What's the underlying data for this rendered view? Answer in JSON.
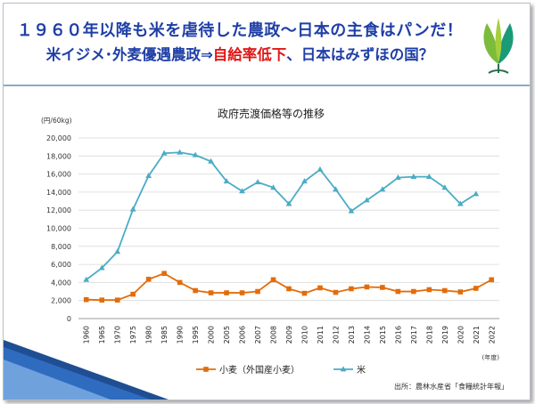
{
  "title": {
    "line1": "１９６０年以降も米を虐待した農政～日本の主食はパンだ！",
    "line2_a": "米イジメ･外麦優遇農政⇒",
    "line2_red": "自給率低下",
    "line2_b": "、日本はみずほの国？"
  },
  "colors": {
    "title": "#1f3fa6",
    "red": "#e01818",
    "wheat": "#e36c0a",
    "rice": "#4bacc6"
  },
  "chart_data": {
    "type": "line",
    "title": "政府売渡価格等の推移",
    "ylabel": "(円/60kg)",
    "xlabel": "(年度)",
    "ylim": [
      0,
      20000
    ],
    "yticks": [
      0,
      2000,
      4000,
      6000,
      8000,
      10000,
      12000,
      14000,
      16000,
      18000,
      20000
    ],
    "ytick_labels": [
      "0",
      "2,000",
      "4,000",
      "6,000",
      "8,000",
      "10,000",
      "12,000",
      "14,000",
      "16,000",
      "18,000",
      "20,000"
    ],
    "categories": [
      "1960",
      "1965",
      "1970",
      "1975",
      "1980",
      "1985",
      "1990",
      "1995",
      "2000",
      "2005",
      "2006",
      "2007",
      "2008",
      "2009",
      "2010",
      "2011",
      "2012",
      "2013",
      "2014",
      "2015",
      "2016",
      "2017",
      "2018",
      "2019",
      "2020",
      "2021",
      "2022"
    ],
    "series": [
      {
        "name": "小麦（外国産小麦）",
        "values": [
          2100,
          2050,
          2050,
          2700,
          4350,
          5000,
          4000,
          3100,
          2850,
          2850,
          2850,
          3000,
          4300,
          3300,
          2800,
          3400,
          2900,
          3300,
          3500,
          3450,
          3000,
          3000,
          3200,
          3100,
          2950,
          3350,
          4300
        ]
      },
      {
        "name": "米",
        "values": [
          4300,
          5600,
          7400,
          12100,
          15800,
          18300,
          18400,
          18100,
          17400,
          15200,
          14100,
          15100,
          14500,
          12700,
          15200,
          16500,
          14300,
          11900,
          13100,
          14300,
          15600,
          15700,
          15700,
          14500,
          12700,
          13800,
          null
        ]
      }
    ],
    "legend": "bottom",
    "source": "出所：農林水産省「食糧統計年報」"
  }
}
